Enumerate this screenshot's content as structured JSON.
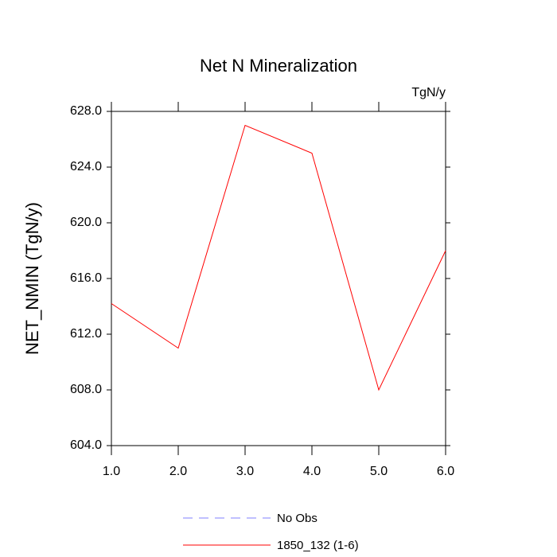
{
  "chart_data": {
    "type": "line",
    "title": "Net N Mineralization",
    "units": "TgN/y",
    "y_label": "NET_NMIN  (TgN/y)",
    "x": [
      1,
      2,
      3,
      4,
      5,
      6
    ],
    "series": [
      {
        "name": "No Obs",
        "color": "#8080ff",
        "dashed": true,
        "values": [
          null,
          null,
          null,
          null,
          null,
          null
        ]
      },
      {
        "name": "1850_132 (1-6)",
        "color": "#ff0000",
        "dashed": false,
        "values": [
          614.2,
          611.0,
          627.0,
          625.0,
          608.0,
          618.0
        ]
      }
    ],
    "xlim": [
      1,
      6
    ],
    "xticks": [
      {
        "value": 1,
        "label": "1.0"
      },
      {
        "value": 2,
        "label": "2.0"
      },
      {
        "value": 3,
        "label": "3.0"
      },
      {
        "value": 4,
        "label": "4.0"
      },
      {
        "value": 5,
        "label": "5.0"
      },
      {
        "value": 6,
        "label": "6.0"
      }
    ],
    "ylim": [
      604,
      628
    ],
    "yticks": [
      {
        "value": 604,
        "label": "604.0"
      },
      {
        "value": 608,
        "label": "608.0"
      },
      {
        "value": 612,
        "label": "612.0"
      },
      {
        "value": 616,
        "label": "616.0"
      },
      {
        "value": 620,
        "label": "620.0"
      },
      {
        "value": 624,
        "label": "624.0"
      },
      {
        "value": 628,
        "label": "628.0"
      }
    ],
    "grid": false
  }
}
